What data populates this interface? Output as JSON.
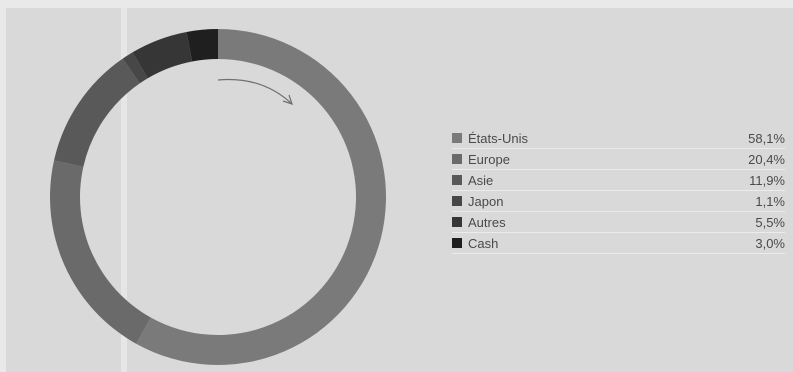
{
  "chart_data": {
    "type": "pie",
    "categories": [
      "États-Unis",
      "Europe",
      "Asie",
      "Japon",
      "Autres",
      "Cash"
    ],
    "values_display": [
      "58,1%",
      "20,4%",
      "11,9%",
      "1,1%",
      "5,5%",
      "3,0%"
    ],
    "values": [
      58.1,
      20.4,
      11.9,
      1.1,
      5.5,
      3.0
    ],
    "colors": [
      "#7a7a7a",
      "#6a6a6a",
      "#595959",
      "#474747",
      "#363636",
      "#1f1f1f"
    ],
    "style": "donut",
    "direction": "clockwise",
    "legend_position": "right"
  }
}
